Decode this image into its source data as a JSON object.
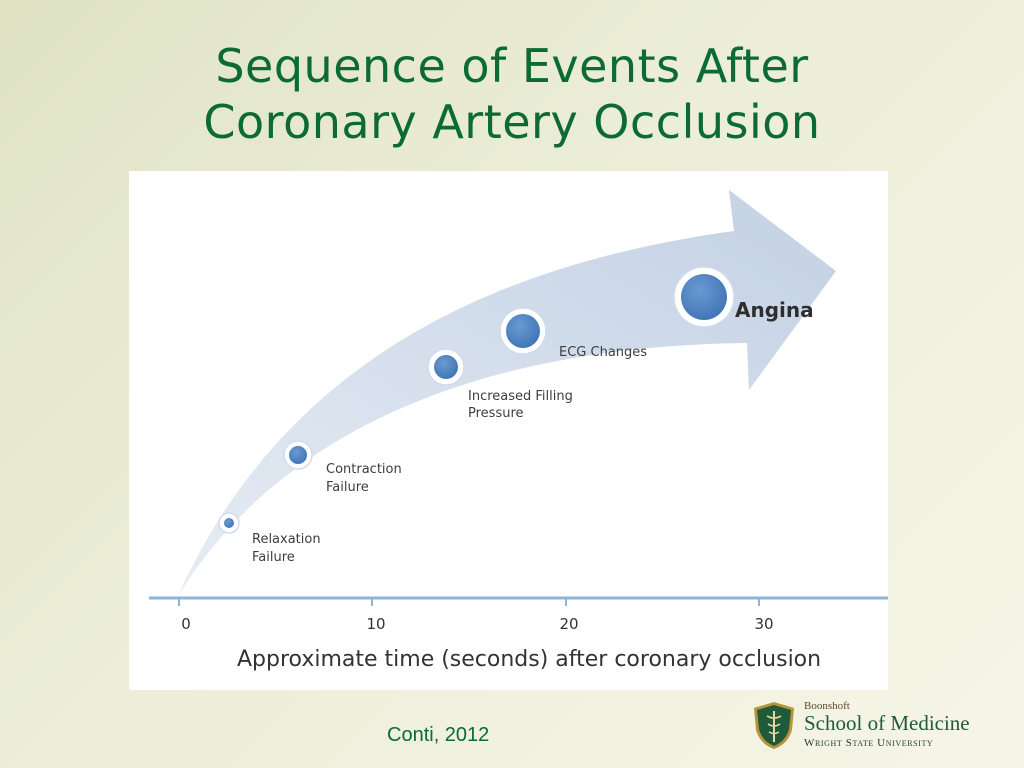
{
  "slide": {
    "title_line1": "Sequence of Events After",
    "title_line2": "Coronary Artery Occlusion",
    "citation": "Conti, 2012"
  },
  "diagram": {
    "events": [
      {
        "line1": "Relaxation",
        "line2": "Failure",
        "time_s": 2.6,
        "size": "xsmall"
      },
      {
        "line1": "Contraction",
        "line2": "Failure",
        "time_s": 6.2,
        "size": "small"
      },
      {
        "line1": "Increased Filling",
        "line2": "Pressure",
        "time_s": 13.8,
        "size": "medium"
      },
      {
        "line1": "ECG Changes",
        "line2": "",
        "time_s": 17.8,
        "size": "large"
      },
      {
        "line1": "Angina",
        "line2": "",
        "time_s": 27.2,
        "size": "xlarge"
      }
    ],
    "axis": {
      "ticks": [
        "0",
        "10",
        "20",
        "30"
      ],
      "title": "Approximate time (seconds) after coronary occlusion"
    }
  },
  "colors": {
    "title": "#0b6b32",
    "arrow": "#c9d6e8",
    "dot_fill": "#4a80c0",
    "axis": "#8fb3d9"
  },
  "logo": {
    "top": "Boonshoft",
    "main": "School of Medicine",
    "sub": "Wright State University"
  }
}
